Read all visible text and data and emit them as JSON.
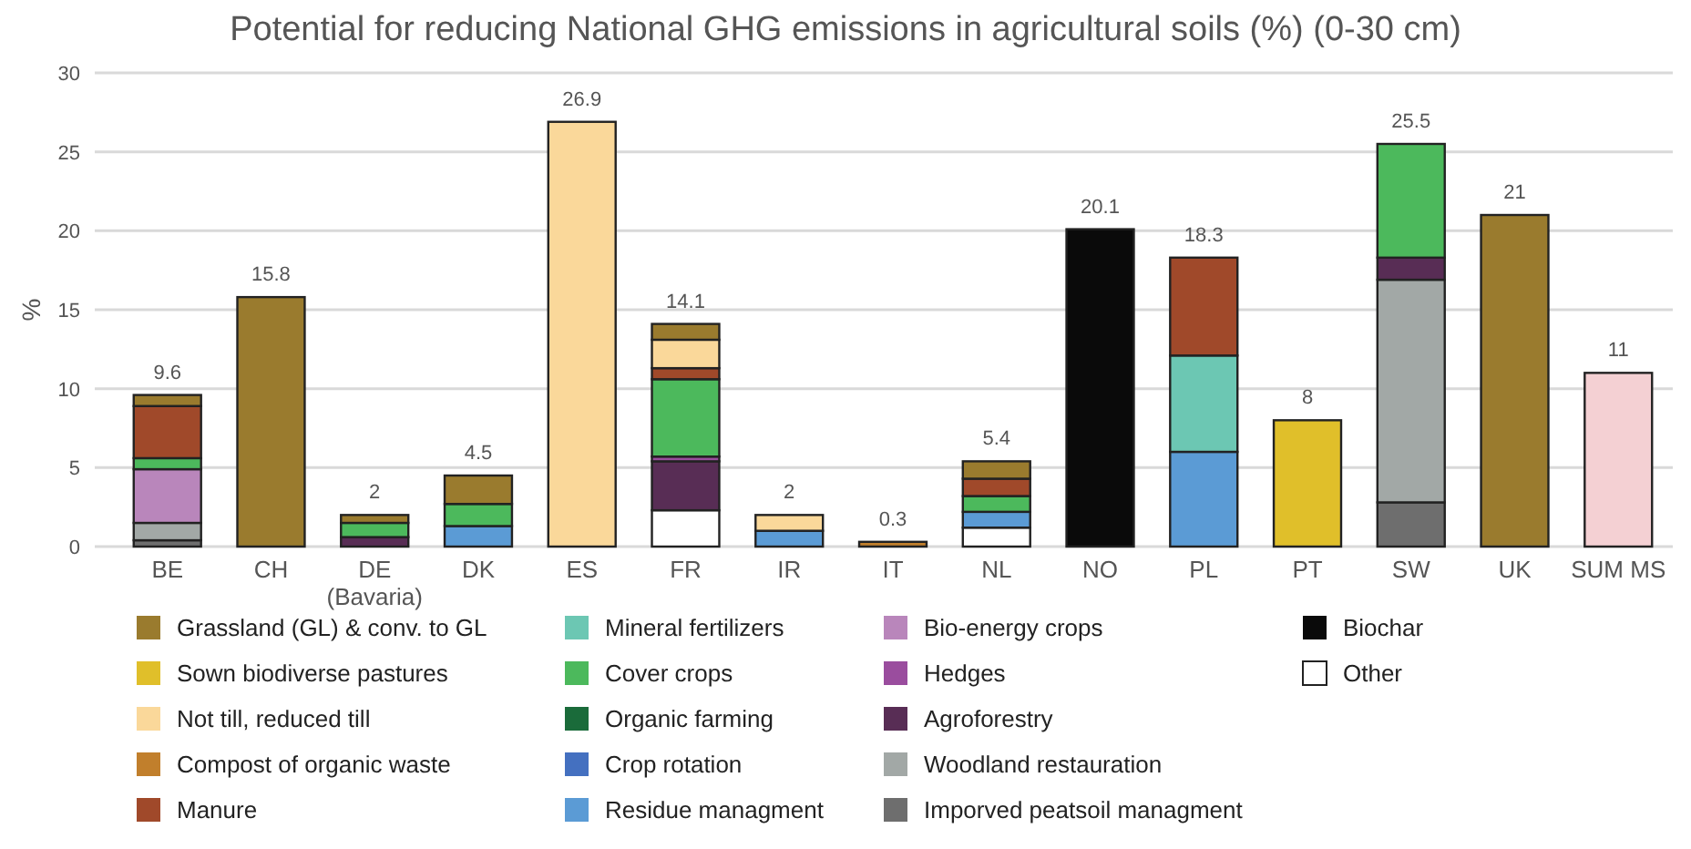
{
  "chart_data": {
    "type": "bar",
    "title": "Potential for reducing National GHG emissions in agricultural soils (%) (0-30 cm)",
    "ylabel": "%",
    "categories": [
      "BE",
      "CH",
      "DE\n(Bavaria)",
      "DK",
      "ES",
      "FR",
      "IR",
      "IT",
      "NL",
      "NO",
      "PL",
      "PT",
      "SW",
      "UK",
      "SUM MS"
    ],
    "stacked": true,
    "ylim": [
      0,
      30
    ],
    "yticks": [
      0,
      5,
      10,
      15,
      20,
      25,
      30
    ],
    "grid": "y",
    "legend": "bottom",
    "totals": [
      "9.6",
      "15.8",
      "2",
      "4.5",
      "26.9",
      "14.1",
      "2",
      "0.3",
      "5.4",
      "20.1",
      "18.3",
      "8",
      "25.5",
      "21",
      "11"
    ],
    "series": [
      {
        "color": "#f4d0d3",
        "values": [
          null,
          null,
          null,
          null,
          null,
          null,
          null,
          null,
          null,
          null,
          null,
          null,
          null,
          null,
          11
        ]
      },
      {
        "name": "Other",
        "color": "#ffffff",
        "values": [
          null,
          null,
          null,
          null,
          null,
          2.3,
          null,
          null,
          1.2,
          null,
          null,
          null,
          null,
          null,
          null
        ]
      },
      {
        "name": "Biochar",
        "color": "#0a0a0a",
        "values": [
          null,
          null,
          null,
          null,
          null,
          null,
          null,
          null,
          null,
          20.1,
          null,
          null,
          null,
          null,
          null
        ]
      },
      {
        "name": "Imporved peatsoil managment",
        "color": "#6e6e6e",
        "values": [
          0.4,
          null,
          null,
          null,
          null,
          null,
          null,
          null,
          null,
          null,
          null,
          null,
          2.8,
          null,
          null
        ]
      },
      {
        "name": "Woodland restauration",
        "color": "#a2a8a6",
        "values": [
          1.1,
          null,
          null,
          null,
          null,
          null,
          null,
          null,
          null,
          null,
          null,
          null,
          14.1,
          null,
          null
        ]
      },
      {
        "name": "Agroforestry",
        "color": "#582d55",
        "values": [
          null,
          null,
          0.6,
          null,
          null,
          3.1,
          null,
          null,
          null,
          null,
          null,
          null,
          1.4,
          null,
          null
        ]
      },
      {
        "name": "Hedges",
        "color": "#9a4d9e",
        "values": [
          null,
          null,
          null,
          null,
          null,
          0.3,
          null,
          null,
          null,
          null,
          null,
          null,
          null,
          null,
          null
        ]
      },
      {
        "name": "Bio-energy crops",
        "color": "#b986bb",
        "values": [
          3.4,
          null,
          null,
          null,
          null,
          null,
          null,
          null,
          null,
          null,
          null,
          null,
          null,
          null,
          null
        ]
      },
      {
        "name": "Residue managment",
        "color": "#5b9bd5",
        "values": [
          null,
          null,
          null,
          1.3,
          null,
          null,
          1.0,
          null,
          1.0,
          null,
          6.0,
          null,
          null,
          null,
          null
        ]
      },
      {
        "name": "Crop rotation",
        "color": "#4470c0",
        "values": [
          null,
          null,
          null,
          null,
          null,
          null,
          null,
          null,
          null,
          null,
          null,
          null,
          null,
          null,
          null
        ]
      },
      {
        "name": "Organic farming",
        "color": "#1a6b3a",
        "values": [
          null,
          null,
          null,
          null,
          null,
          null,
          null,
          null,
          null,
          null,
          null,
          null,
          null,
          null,
          null
        ]
      },
      {
        "name": "Cover crops",
        "color": "#4cb95c",
        "values": [
          0.7,
          null,
          0.9,
          1.4,
          null,
          4.9,
          null,
          null,
          1.0,
          null,
          null,
          null,
          7.2,
          null,
          null
        ]
      },
      {
        "name": "Mineral fertilizers",
        "color": "#6cc7b3",
        "values": [
          null,
          null,
          null,
          null,
          null,
          null,
          null,
          null,
          null,
          null,
          6.1,
          null,
          null,
          null,
          null
        ]
      },
      {
        "name": "Manure",
        "color": "#a0492a",
        "values": [
          3.3,
          null,
          null,
          null,
          null,
          0.7,
          null,
          null,
          1.1,
          null,
          6.2,
          null,
          null,
          null,
          null
        ]
      },
      {
        "name": "Compost of organic waste",
        "color": "#c17f2c",
        "values": [
          null,
          null,
          null,
          null,
          null,
          null,
          null,
          0.3,
          null,
          null,
          null,
          null,
          null,
          null,
          null
        ]
      },
      {
        "name": "Not till, reduced till",
        "color": "#fad89a",
        "values": [
          null,
          null,
          null,
          null,
          26.9,
          1.8,
          1.0,
          null,
          null,
          null,
          null,
          null,
          null,
          null,
          null
        ]
      },
      {
        "name": "Sown biodiverse pastures",
        "color": "#e0bf2a",
        "values": [
          null,
          null,
          null,
          null,
          null,
          null,
          null,
          null,
          null,
          null,
          null,
          8,
          null,
          null,
          null
        ]
      },
      {
        "name": "Grassland (GL) & conv. to GL",
        "color": "#9a7b2e",
        "values": [
          0.7,
          15.8,
          0.5,
          1.8,
          null,
          1.0,
          null,
          null,
          1.1,
          null,
          null,
          null,
          null,
          21,
          null
        ]
      }
    ]
  }
}
